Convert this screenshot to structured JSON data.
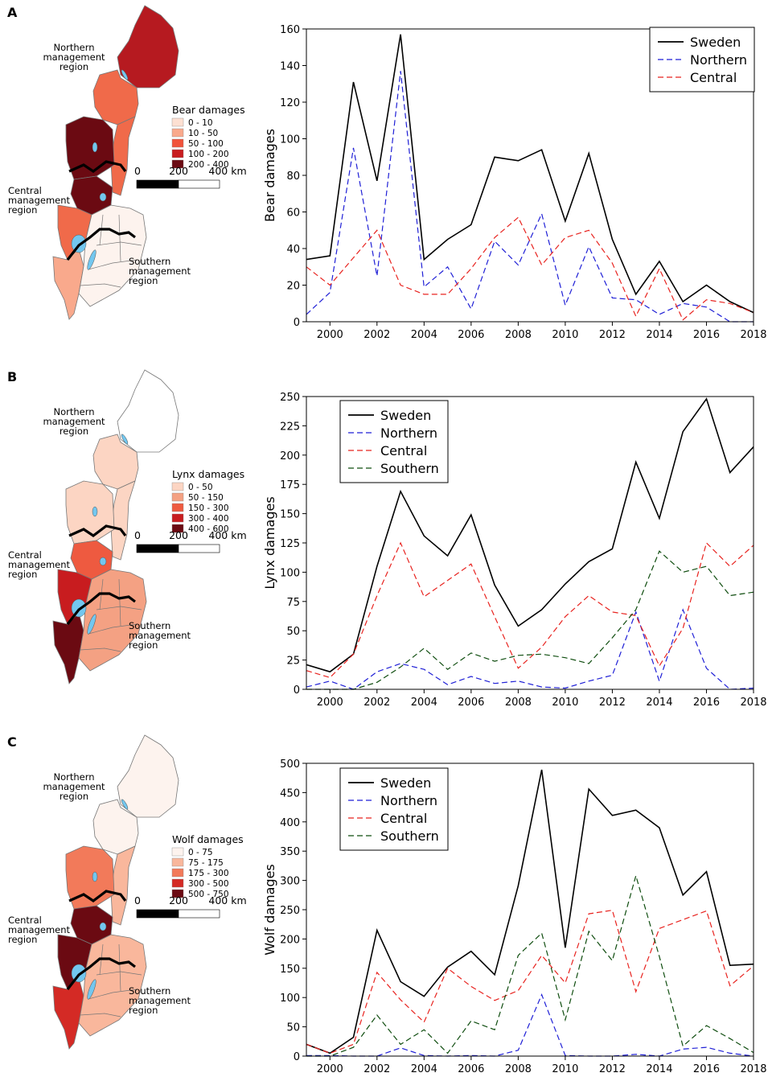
{
  "colors": {
    "sweden": "#000000",
    "northern": "#1f1fd6",
    "central": "#e8231f",
    "southern": "#0f4d0f",
    "lake": "#73c7ef",
    "border": "#777777"
  },
  "maps": [
    {
      "panel_label": "A",
      "region_labels": {
        "northern": [
          "Northern",
          "management",
          "region"
        ],
        "central": [
          "Central",
          "management",
          "region"
        ],
        "southern": [
          "Southern",
          "management",
          "region"
        ]
      },
      "legend_title": "Bear damages",
      "legend": [
        {
          "label": "0 -   10",
          "color": "#fde0d2"
        },
        {
          "label": "10 -   50",
          "color": "#f9a98c"
        },
        {
          "label": "50 - 100",
          "color": "#f1533b"
        },
        {
          "label": "100 - 200",
          "color": "#c81c1f"
        },
        {
          "label": "200 - 400",
          "color": "#6b0a12"
        }
      ],
      "scale_labels": [
        "0",
        "200",
        "400 km"
      ],
      "fills": [
        "#b61a20",
        "#f06a4a",
        "#f06a4a",
        "#6b0a12",
        "#6b0a12",
        "#f06a4a",
        "#f9a98c",
        "#fdf3ee"
      ]
    },
    {
      "panel_label": "B",
      "region_labels": {
        "northern": [
          "Northern",
          "management",
          "region"
        ],
        "central": [
          "Central",
          "management",
          "region"
        ],
        "southern": [
          "Southern",
          "management",
          "region"
        ]
      },
      "legend_title": "Lynx damages",
      "legend": [
        {
          "label": "0 -   50",
          "color": "#fcd5c3"
        },
        {
          "label": "50 - 150",
          "color": "#f4a183"
        },
        {
          "label": "150 - 300",
          "color": "#ee5a40"
        },
        {
          "label": "300 - 400",
          "color": "#c81c1f"
        },
        {
          "label": "400 - 600",
          "color": "#6b0a12"
        }
      ],
      "scale_labels": [
        "0",
        "200",
        "400 km"
      ],
      "fills": [
        "#ffffff",
        "#fcd5c3",
        "#fcd5c3",
        "#fcd5c3",
        "#ee5a40",
        "#c81c1f",
        "#6b0a12",
        "#f4a183"
      ]
    },
    {
      "panel_label": "C",
      "region_labels": {
        "northern": [
          "Northern",
          "management",
          "region"
        ],
        "central": [
          "Central",
          "management",
          "region"
        ],
        "southern": [
          "Southern",
          "management",
          "region"
        ]
      },
      "legend_title": "Wolf damages",
      "legend": [
        {
          "label": "0 -   75",
          "color": "#fdf3ee"
        },
        {
          "label": "75 - 175",
          "color": "#f9b79c"
        },
        {
          "label": "175 - 300",
          "color": "#f27a5a"
        },
        {
          "label": "300 - 500",
          "color": "#d42a25"
        },
        {
          "label": "500 - 750",
          "color": "#6b0a12"
        }
      ],
      "scale_labels": [
        "0",
        "200",
        "400 km"
      ],
      "fills": [
        "#fdf3ee",
        "#fdf3ee",
        "#f9b79c",
        "#f27a5a",
        "#6b0a12",
        "#6b0a12",
        "#d42a25",
        "#f9b79c"
      ]
    }
  ],
  "chart_data": [
    {
      "type": "line",
      "title": "",
      "xlabel": "",
      "ylabel": "Bear damages",
      "x": [
        1999,
        2000,
        2001,
        2002,
        2003,
        2004,
        2005,
        2006,
        2007,
        2008,
        2009,
        2010,
        2011,
        2012,
        2013,
        2014,
        2015,
        2016,
        2017,
        2018
      ],
      "xlim": [
        1999,
        2018
      ],
      "xticks": [
        2000,
        2002,
        2004,
        2006,
        2008,
        2010,
        2012,
        2014,
        2016,
        2018
      ],
      "ylim": [
        0,
        160
      ],
      "yticks": [
        0,
        20,
        40,
        60,
        80,
        100,
        120,
        140,
        160
      ],
      "legend_position": "top-right",
      "series": [
        {
          "name": "Sweden",
          "style": "solid",
          "values": [
            34,
            36,
            131,
            77,
            157,
            34,
            45,
            53,
            90,
            88,
            94,
            55,
            92,
            45,
            15,
            33,
            11,
            20,
            11,
            5
          ]
        },
        {
          "name": "Northern",
          "style": "dashed",
          "values": [
            4,
            16,
            95,
            25,
            137,
            19,
            30,
            7,
            44,
            31,
            59,
            9,
            41,
            13,
            12,
            4,
            10,
            8,
            0,
            0
          ]
        },
        {
          "name": "Central",
          "style": "dashed",
          "values": [
            30,
            20,
            35,
            50,
            20,
            15,
            15,
            29,
            46,
            57,
            31,
            46,
            50,
            32,
            3,
            29,
            1,
            12,
            10,
            5
          ]
        }
      ]
    },
    {
      "type": "line",
      "title": "",
      "xlabel": "",
      "ylabel": "Lynx damages",
      "x": [
        1999,
        2000,
        2001,
        2002,
        2003,
        2004,
        2005,
        2006,
        2007,
        2008,
        2009,
        2010,
        2011,
        2012,
        2013,
        2014,
        2015,
        2016,
        2017,
        2018
      ],
      "xlim": [
        1999,
        2018
      ],
      "xticks": [
        2000,
        2002,
        2004,
        2006,
        2008,
        2010,
        2012,
        2014,
        2016,
        2018
      ],
      "ylim": [
        0,
        250
      ],
      "yticks": [
        0,
        25,
        50,
        75,
        100,
        125,
        150,
        175,
        200,
        225,
        250
      ],
      "legend_position": "top-left",
      "series": [
        {
          "name": "Sweden",
          "style": "solid",
          "values": [
            21,
            15,
            30,
            105,
            169,
            131,
            114,
            149,
            89,
            54,
            68,
            90,
            109,
            120,
            194,
            146,
            220,
            248,
            185,
            207
          ]
        },
        {
          "name": "Northern",
          "style": "dashed",
          "values": [
            2,
            7,
            0,
            15,
            22,
            17,
            4,
            11,
            5,
            7,
            2,
            1,
            7,
            12,
            66,
            7,
            68,
            18,
            0,
            1
          ]
        },
        {
          "name": "Central",
          "style": "dashed",
          "values": [
            16,
            10,
            30,
            80,
            125,
            79,
            93,
            107,
            62,
            18,
            36,
            62,
            80,
            66,
            63,
            20,
            52,
            125,
            105,
            123
          ]
        },
        {
          "name": "Southern",
          "style": "dashed",
          "values": [
            0,
            0,
            0,
            6,
            19,
            35,
            17,
            31,
            24,
            29,
            30,
            27,
            22,
            44,
            68,
            118,
            100,
            105,
            80,
            83
          ]
        }
      ]
    },
    {
      "type": "line",
      "title": "",
      "xlabel": "",
      "ylabel": "Wolf damages",
      "x": [
        1999,
        2000,
        2001,
        2002,
        2003,
        2004,
        2005,
        2006,
        2007,
        2008,
        2009,
        2010,
        2011,
        2012,
        2013,
        2014,
        2015,
        2016,
        2017,
        2018
      ],
      "xlim": [
        1999,
        2018
      ],
      "xticks": [
        2000,
        2002,
        2004,
        2006,
        2008,
        2010,
        2012,
        2014,
        2016,
        2018
      ],
      "ylim": [
        0,
        500
      ],
      "yticks": [
        0,
        50,
        100,
        150,
        200,
        250,
        300,
        350,
        400,
        450,
        500
      ],
      "legend_position": "top-left",
      "series": [
        {
          "name": "Sweden",
          "style": "solid",
          "values": [
            20,
            5,
            32,
            215,
            127,
            102,
            152,
            179,
            139,
            291,
            489,
            185,
            456,
            411,
            420,
            390,
            275,
            315,
            155,
            157
          ]
        },
        {
          "name": "Northern",
          "style": "dashed",
          "values": [
            1,
            1,
            0,
            0,
            14,
            1,
            0,
            1,
            0,
            10,
            105,
            1,
            0,
            0,
            3,
            0,
            12,
            15,
            5,
            0
          ]
        },
        {
          "name": "Central",
          "style": "dashed",
          "values": [
            20,
            5,
            20,
            143,
            96,
            58,
            150,
            119,
            95,
            112,
            172,
            125,
            243,
            249,
            110,
            218,
            233,
            248,
            120,
            154
          ]
        },
        {
          "name": "Southern",
          "style": "dashed",
          "values": [
            0,
            0,
            15,
            70,
            20,
            45,
            5,
            60,
            45,
            172,
            210,
            62,
            213,
            163,
            308,
            170,
            17,
            52,
            30,
            6
          ]
        }
      ]
    }
  ]
}
